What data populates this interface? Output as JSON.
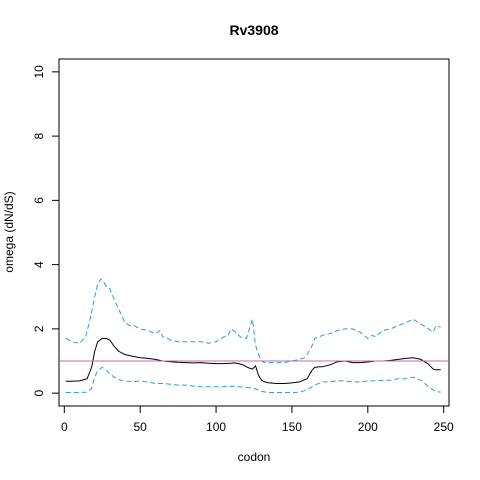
{
  "chart_data": {
    "type": "line",
    "title": "Rv3908",
    "xlabel": "codon",
    "ylabel": "omega (dN/dS)",
    "xlim": [
      0,
      250
    ],
    "ylim": [
      0,
      10
    ],
    "xticks": [
      "0",
      "50",
      "100",
      "150",
      "200",
      "250"
    ],
    "yticks": [
      "0",
      "2",
      "4",
      "6",
      "8",
      "10"
    ],
    "grid": false,
    "reference_line": {
      "y": 1,
      "color": "#cc66aa"
    },
    "series": [
      {
        "style": "solid",
        "color": "#000000",
        "x": [
          1,
          5,
          10,
          15,
          18,
          20,
          22,
          25,
          28,
          30,
          33,
          36,
          40,
          45,
          50,
          55,
          60,
          65,
          70,
          75,
          80,
          85,
          90,
          95,
          100,
          105,
          110,
          112,
          115,
          118,
          120,
          122,
          124,
          126,
          128,
          130,
          132,
          135,
          140,
          145,
          150,
          155,
          160,
          163,
          165,
          168,
          170,
          175,
          180,
          185,
          190,
          195,
          200,
          205,
          210,
          215,
          220,
          225,
          230,
          235,
          240,
          243,
          245,
          248
        ],
        "y": [
          0.37,
          0.37,
          0.38,
          0.45,
          0.8,
          1.3,
          1.6,
          1.7,
          1.7,
          1.65,
          1.45,
          1.3,
          1.2,
          1.15,
          1.1,
          1.08,
          1.05,
          1.0,
          0.98,
          0.96,
          0.95,
          0.94,
          0.95,
          0.93,
          0.92,
          0.92,
          0.93,
          0.94,
          0.92,
          0.88,
          0.82,
          0.78,
          0.75,
          0.85,
          0.55,
          0.4,
          0.35,
          0.32,
          0.3,
          0.3,
          0.32,
          0.35,
          0.45,
          0.7,
          0.8,
          0.82,
          0.82,
          0.88,
          0.98,
          1.0,
          0.95,
          0.95,
          0.97,
          1.0,
          1.0,
          1.02,
          1.05,
          1.08,
          1.1,
          1.05,
          0.9,
          0.75,
          0.73,
          0.73
        ]
      },
      {
        "style": "dashed",
        "color": "#3399dd",
        "x": [
          1,
          5,
          10,
          14,
          17,
          20,
          22,
          24,
          26,
          28,
          30,
          33,
          36,
          40,
          43,
          46,
          50,
          55,
          60,
          63,
          65,
          68,
          70,
          75,
          80,
          85,
          90,
          95,
          100,
          105,
          108,
          110,
          113,
          116,
          120,
          122,
          124,
          126,
          128,
          130,
          132,
          135,
          140,
          145,
          150,
          155,
          158,
          160,
          163,
          165,
          168,
          170,
          175,
          180,
          185,
          190,
          195,
          200,
          203,
          205,
          210,
          215,
          220,
          225,
          230,
          235,
          240,
          243,
          245,
          248
        ],
        "y": [
          1.7,
          1.6,
          1.55,
          1.75,
          2.3,
          3.0,
          3.4,
          3.55,
          3.45,
          3.3,
          3.25,
          2.9,
          2.6,
          2.2,
          2.1,
          2.1,
          2.0,
          1.95,
          1.85,
          1.95,
          1.75,
          1.7,
          1.65,
          1.6,
          1.6,
          1.6,
          1.6,
          1.55,
          1.6,
          1.75,
          1.8,
          2.0,
          1.9,
          1.75,
          1.7,
          2.0,
          2.3,
          1.5,
          1.2,
          1.0,
          0.95,
          0.95,
          0.95,
          0.95,
          1.0,
          1.05,
          1.1,
          1.2,
          1.45,
          1.7,
          1.75,
          1.8,
          1.85,
          1.95,
          2.0,
          2.0,
          1.9,
          1.7,
          1.8,
          1.75,
          1.95,
          2.0,
          2.1,
          2.2,
          2.3,
          2.15,
          2.0,
          1.9,
          2.1,
          2.05
        ]
      },
      {
        "style": "dashed",
        "color": "#3399dd",
        "x": [
          1,
          5,
          10,
          15,
          18,
          20,
          22,
          25,
          28,
          30,
          33,
          36,
          40,
          45,
          50,
          55,
          60,
          65,
          70,
          75,
          80,
          85,
          90,
          95,
          100,
          105,
          110,
          115,
          120,
          125,
          130,
          135,
          140,
          145,
          150,
          155,
          160,
          165,
          170,
          175,
          180,
          185,
          190,
          195,
          200,
          205,
          210,
          215,
          220,
          225,
          230,
          235,
          240,
          243,
          245,
          248
        ],
        "y": [
          0.02,
          0.02,
          0.02,
          0.03,
          0.15,
          0.5,
          0.7,
          0.8,
          0.7,
          0.6,
          0.5,
          0.42,
          0.38,
          0.35,
          0.38,
          0.35,
          0.3,
          0.3,
          0.28,
          0.25,
          0.25,
          0.22,
          0.2,
          0.2,
          0.2,
          0.2,
          0.22,
          0.2,
          0.18,
          0.15,
          0.05,
          0.02,
          0.02,
          0.02,
          0.02,
          0.03,
          0.1,
          0.25,
          0.35,
          0.35,
          0.38,
          0.38,
          0.35,
          0.35,
          0.38,
          0.38,
          0.4,
          0.4,
          0.45,
          0.45,
          0.5,
          0.4,
          0.2,
          0.1,
          0.05,
          0.03
        ]
      }
    ]
  }
}
